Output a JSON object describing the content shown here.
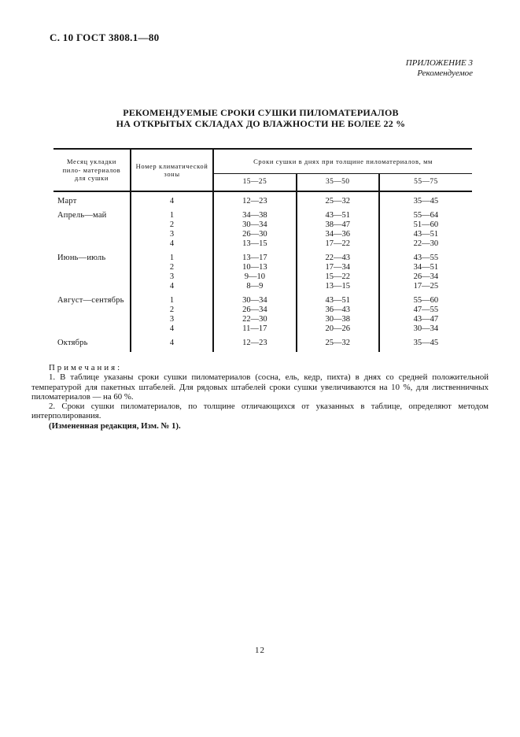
{
  "page": {
    "header_left": "С. 10 ГОСТ 3808.1—80",
    "appendix_line1": "ПРИЛОЖЕНИЕ 3",
    "appendix_line2": "Рекомендуемое",
    "page_number": "12"
  },
  "title": {
    "line1": "РЕКОМЕНДУЕМЫЕ СРОКИ СУШКИ ПИЛОМАТЕРИАЛОВ",
    "line2": "НА ОТКРЫТЫХ СКЛАДАХ ДО ВЛАЖНОСТИ НЕ БОЛЕЕ 22 %"
  },
  "table": {
    "col_month": "Месяц укладки пило- материалов для сушки",
    "col_zone": "Номер климатической зоны",
    "col_span": "Сроки сушки в днях при толщине пиломатериалов, мм",
    "range1": "15—25",
    "range2": "35—50",
    "range3": "55—75",
    "rows": [
      {
        "month": "Март",
        "zone": "4",
        "d1": "12—23",
        "d2": "25—32",
        "d3": "35—45"
      },
      {
        "month": "Апрель—май",
        "zone": "1",
        "d1": "34—38",
        "d2": "43—51",
        "d3": "55—64"
      },
      {
        "month": "",
        "zone": "2",
        "d1": "30—34",
        "d2": "38—47",
        "d3": "51—60"
      },
      {
        "month": "",
        "zone": "3",
        "d1": "26—30",
        "d2": "34—36",
        "d3": "43—51"
      },
      {
        "month": "",
        "zone": "4",
        "d1": "13—15",
        "d2": "17—22",
        "d3": "22—30"
      },
      {
        "month": "Июнь—июль",
        "zone": "1",
        "d1": "13—17",
        "d2": "22—43",
        "d3": "43—55"
      },
      {
        "month": "",
        "zone": "2",
        "d1": "10—13",
        "d2": "17—34",
        "d3": "34—51"
      },
      {
        "month": "",
        "zone": "3",
        "d1": "9—10",
        "d2": "15—22",
        "d3": "26—34"
      },
      {
        "month": "",
        "zone": "4",
        "d1": "8—9",
        "d2": "13—15",
        "d3": "17—25"
      },
      {
        "month": "Август—сентябрь",
        "zone": "1",
        "d1": "30—34",
        "d2": "43—51",
        "d3": "55—60"
      },
      {
        "month": "",
        "zone": "2",
        "d1": "26—34",
        "d2": "36—43",
        "d3": "47—55"
      },
      {
        "month": "",
        "zone": "3",
        "d1": "22—30",
        "d2": "30—38",
        "d3": "43—47"
      },
      {
        "month": "",
        "zone": "4",
        "d1": "11—17",
        "d2": "20—26",
        "d3": "30—34"
      },
      {
        "month": "Октябрь",
        "zone": "4",
        "d1": "12—23",
        "d2": "25—32",
        "d3": "35—45"
      }
    ]
  },
  "notes": {
    "heading": "Примечания:",
    "note1": "1. В таблице указаны сроки сушки пиломатериалов (сосна, ель, кедр, пихта) в днях со средней положительной температурой для пакетных штабелей. Для рядовых штабелей сроки сушки увеличиваются на 10 %, для лиственничных пиломатериалов — на 60 %.",
    "note2": "2. Сроки сушки пиломатериалов, по толщине отличающихся от указанных в таблице, определяют методом интерполирования.",
    "revision": "(Измененная редакция, Изм. № 1)."
  }
}
